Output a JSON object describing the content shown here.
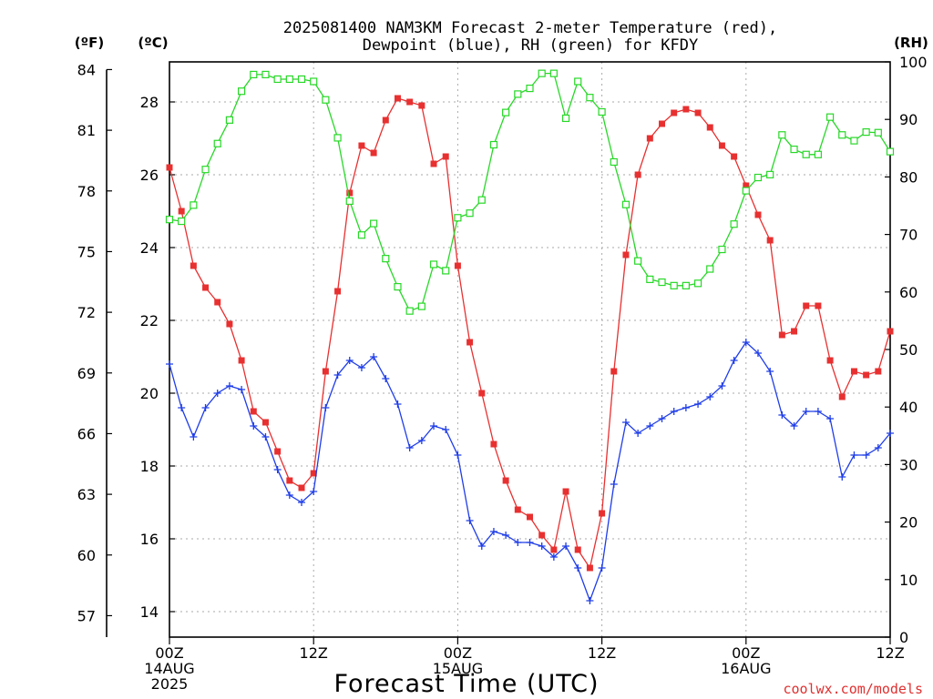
{
  "chart_data": {
    "type": "line",
    "title_line1": "2025081400 NAM3KM Forecast 2-meter Temperature (red),",
    "title_line2": "Dewpoint (blue), RH (green) for KFDY",
    "xlabel": "Forecast Time (UTC)",
    "units": {
      "fahrenheit": "(ºF)",
      "celsius": "(ºC)",
      "rh": "(RH)"
    },
    "x_range_hours": [
      0,
      60
    ],
    "x_ticks": [
      {
        "hour": 0,
        "lines": [
          "00Z",
          "14AUG",
          "2025"
        ]
      },
      {
        "hour": 12,
        "lines": [
          "12Z"
        ]
      },
      {
        "hour": 24,
        "lines": [
          "00Z",
          "15AUG"
        ]
      },
      {
        "hour": 36,
        "lines": [
          "12Z"
        ]
      },
      {
        "hour": 48,
        "lines": [
          "00Z",
          "16AUG"
        ]
      },
      {
        "hour": 60,
        "lines": [
          "12Z"
        ]
      }
    ],
    "celsius_axis": {
      "range": [
        13.3,
        29.1
      ],
      "ticks": [
        14,
        16,
        18,
        20,
        22,
        24,
        26,
        28
      ]
    },
    "fahrenheit_axis": {
      "ticks": [
        57,
        60,
        63,
        66,
        69,
        72,
        75,
        78,
        81,
        84
      ]
    },
    "rh_axis": {
      "range": [
        0,
        100
      ],
      "ticks": [
        0,
        10,
        20,
        30,
        40,
        50,
        60,
        70,
        80,
        90,
        100
      ]
    },
    "grid": true,
    "series": [
      {
        "key": "temperature",
        "axis": "celsius",
        "color": "#e83030",
        "marker": "filled-square",
        "hours": [
          0,
          1,
          2,
          3,
          4,
          5,
          6,
          7,
          8,
          9,
          10,
          11,
          12,
          13,
          14,
          15,
          16,
          17,
          18,
          19,
          20,
          21,
          22,
          23,
          24,
          25,
          26,
          27,
          28,
          29,
          30,
          31,
          32,
          33,
          34,
          35,
          36,
          37,
          38,
          39,
          40,
          41,
          42,
          43,
          44,
          45,
          46,
          47,
          48,
          49,
          50,
          51,
          52,
          53,
          54,
          55,
          56,
          57,
          58,
          59,
          60
        ],
        "values": [
          26.2,
          25.0,
          23.5,
          22.9,
          22.5,
          21.9,
          20.9,
          19.5,
          19.2,
          18.4,
          17.6,
          17.4,
          17.8,
          20.6,
          22.8,
          25.5,
          26.8,
          26.6,
          27.5,
          28.1,
          28.0,
          27.9,
          26.3,
          26.5,
          23.5,
          21.4,
          20.0,
          18.6,
          17.6,
          16.8,
          16.6,
          16.1,
          15.7,
          17.3,
          15.7,
          15.2,
          16.7,
          20.6,
          23.8,
          26.0,
          27.0,
          27.4,
          27.7,
          27.8,
          27.7,
          27.3,
          26.8,
          26.5,
          25.7,
          24.9,
          24.2,
          21.6,
          21.7,
          22.4,
          22.4,
          20.9,
          19.9,
          20.6,
          20.5,
          20.6,
          21.7
        ]
      },
      {
        "key": "dewpoint",
        "axis": "celsius",
        "color": "#1f3de8",
        "marker": "plus",
        "hours": [
          0,
          1,
          2,
          3,
          4,
          5,
          6,
          7,
          8,
          9,
          10,
          11,
          12,
          13,
          14,
          15,
          16,
          17,
          18,
          19,
          20,
          21,
          22,
          23,
          24,
          25,
          26,
          27,
          28,
          29,
          30,
          31,
          32,
          33,
          34,
          35,
          36,
          37,
          38,
          39,
          40,
          41,
          42,
          43,
          44,
          45,
          46,
          47,
          48,
          49,
          50,
          51,
          52,
          53,
          54,
          55,
          56,
          57,
          58,
          59,
          60
        ],
        "values": [
          20.8,
          19.6,
          18.8,
          19.6,
          20.0,
          20.2,
          20.1,
          19.1,
          18.8,
          17.9,
          17.2,
          17.0,
          17.3,
          19.6,
          20.5,
          20.9,
          20.7,
          21.0,
          20.4,
          19.7,
          18.5,
          18.7,
          19.1,
          19.0,
          18.3,
          16.5,
          15.8,
          16.2,
          16.1,
          15.9,
          15.9,
          15.8,
          15.5,
          15.8,
          15.2,
          14.3,
          15.2,
          17.5,
          19.2,
          18.9,
          19.1,
          19.3,
          19.5,
          19.6,
          19.7,
          19.9,
          20.2,
          20.9,
          21.4,
          21.1,
          20.6,
          19.4,
          19.1,
          19.5,
          19.5,
          19.3,
          17.7,
          18.3,
          18.3,
          18.5,
          18.9
        ]
      },
      {
        "key": "rh",
        "axis": "rh",
        "color": "#28d828",
        "marker": "open-square",
        "hours": [
          0,
          1,
          2,
          3,
          4,
          5,
          6,
          7,
          8,
          9,
          10,
          11,
          12,
          13,
          14,
          15,
          16,
          17,
          18,
          19,
          20,
          21,
          22,
          23,
          24,
          25,
          26,
          27,
          28,
          29,
          30,
          31,
          32,
          33,
          34,
          35,
          36,
          37,
          38,
          39,
          40,
          41,
          42,
          43,
          44,
          45,
          46,
          47,
          48,
          49,
          50,
          51,
          52,
          53,
          54,
          55,
          56,
          57,
          58,
          59,
          60
        ],
        "values": [
          72.6,
          72.3,
          75.1,
          81.3,
          85.8,
          89.9,
          94.9,
          97.8,
          97.8,
          97.0,
          97.0,
          97.0,
          96.6,
          93.4,
          86.8,
          75.8,
          69.9,
          71.9,
          65.8,
          60.9,
          56.7,
          57.5,
          64.8,
          63.7,
          72.9,
          73.7,
          76.0,
          85.6,
          91.2,
          94.4,
          95.4,
          98.0,
          98.0,
          90.2,
          96.6,
          93.8,
          91.3,
          82.6,
          75.2,
          65.4,
          62.2,
          61.7,
          61.1,
          61.1,
          61.5,
          64.0,
          67.4,
          71.8,
          77.6,
          79.9,
          80.4,
          87.3,
          84.8,
          83.9,
          83.9,
          90.4,
          87.3,
          86.3,
          87.8,
          87.7,
          84.4
        ]
      }
    ],
    "credit": "coolwx.com/models"
  }
}
